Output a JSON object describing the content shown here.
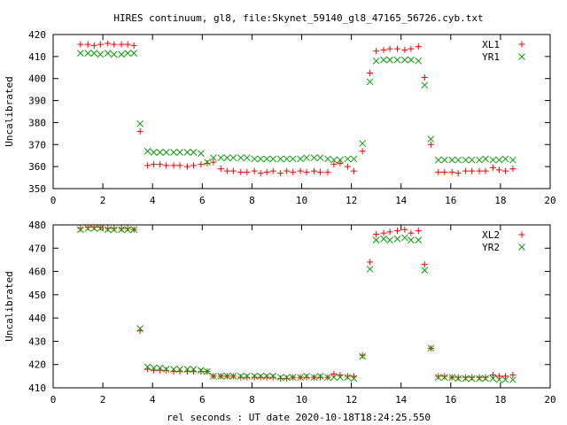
{
  "title": "HIRES continuum, gl8, file:Skynet_59140_gl8_47165_56726.cyb.txt",
  "xlabel": "rel seconds : UT date 2020-10-18T18:24:25.550",
  "colors": {
    "red": "#ff0000",
    "green": "#00a000",
    "black": "#000000"
  },
  "chart_data": [
    {
      "type": "scatter",
      "title": "HIRES continuum, gl8, file:Skynet_59140_gl8_47165_56726.cyb.txt",
      "xlabel": "",
      "ylabel": "Uncalibrated",
      "xlim": [
        0,
        20
      ],
      "ylim": [
        350,
        420
      ],
      "xticks": [
        "0",
        "2",
        "4",
        "6",
        "8",
        "10",
        "12",
        "14",
        "16",
        "18",
        "20"
      ],
      "yticks": [
        "350",
        "360",
        "370",
        "380",
        "390",
        "400",
        "410",
        "420"
      ],
      "legend_position": "top-right",
      "grid": false,
      "series": [
        {
          "name": "XL1",
          "marker": "plus",
          "color": "#ff0000",
          "x": [
            1.1,
            1.4,
            1.65,
            1.9,
            2.2,
            2.45,
            2.75,
            3.0,
            3.25,
            3.5,
            3.8,
            4.05,
            4.3,
            4.55,
            4.85,
            5.1,
            5.4,
            5.65,
            5.95,
            6.2,
            6.45,
            6.75,
            7.0,
            7.25,
            7.55,
            7.8,
            8.1,
            8.35,
            8.6,
            8.85,
            9.15,
            9.4,
            9.65,
            9.95,
            10.2,
            10.5,
            10.75,
            11.05,
            11.3,
            11.55,
            11.85,
            12.1,
            12.45,
            12.75,
            13.0,
            13.3,
            13.55,
            13.85,
            14.15,
            14.4,
            14.7,
            14.95,
            15.2,
            15.5,
            15.75,
            16.05,
            16.3,
            16.6,
            16.85,
            17.15,
            17.4,
            17.7,
            17.95,
            18.2,
            18.5
          ],
          "y": [
            415.5,
            415.5,
            415,
            415.5,
            416,
            415.5,
            415.5,
            415.5,
            415,
            376,
            360.5,
            361,
            361,
            360.5,
            360.5,
            360.5,
            360,
            360.5,
            361,
            361.5,
            362,
            359,
            358,
            358,
            357.5,
            357.5,
            358,
            357,
            357.5,
            358,
            357,
            358,
            357.5,
            358,
            357.5,
            358,
            357.5,
            357.5,
            361,
            361.5,
            360,
            358,
            367,
            402.5,
            412.5,
            413,
            413.5,
            413.5,
            413,
            413.5,
            414.5,
            400.5,
            370,
            357.5,
            357.5,
            357.5,
            357,
            358,
            358,
            358,
            358,
            359.5,
            358.5,
            358,
            359
          ]
        },
        {
          "name": "YR1",
          "marker": "cross",
          "color": "#00a000",
          "x": [
            1.1,
            1.4,
            1.65,
            1.9,
            2.2,
            2.45,
            2.75,
            3.0,
            3.25,
            3.5,
            3.8,
            4.05,
            4.3,
            4.55,
            4.85,
            5.1,
            5.4,
            5.65,
            5.95,
            6.2,
            6.45,
            6.75,
            7.0,
            7.25,
            7.55,
            7.8,
            8.1,
            8.35,
            8.6,
            8.85,
            9.15,
            9.4,
            9.65,
            9.95,
            10.2,
            10.5,
            10.75,
            11.05,
            11.3,
            11.55,
            11.85,
            12.1,
            12.45,
            12.75,
            13.0,
            13.3,
            13.55,
            13.85,
            14.15,
            14.4,
            14.7,
            14.95,
            15.2,
            15.5,
            15.75,
            16.05,
            16.3,
            16.6,
            16.85,
            17.15,
            17.4,
            17.7,
            17.95,
            18.2,
            18.5
          ],
          "y": [
            411.5,
            411.5,
            411.5,
            411,
            411.5,
            411,
            411,
            411.5,
            411.5,
            379.5,
            367,
            366.5,
            366.5,
            366.5,
            366.5,
            366.5,
            366.5,
            366.5,
            366,
            362,
            364,
            364,
            364,
            364,
            364,
            364,
            363.5,
            363.5,
            363.5,
            363.5,
            363.5,
            363.5,
            363.5,
            363.5,
            364,
            364,
            364,
            363.5,
            363,
            363,
            363.5,
            363.5,
            370.5,
            398.5,
            408,
            408.5,
            408.5,
            408.5,
            408.5,
            408.5,
            408,
            397,
            372.5,
            363,
            363,
            363,
            363,
            363,
            363,
            363,
            363.5,
            363,
            363,
            363.5,
            363
          ]
        }
      ]
    },
    {
      "type": "scatter",
      "title": "",
      "xlabel": "rel seconds : UT date 2020-10-18T18:24:25.550",
      "ylabel": "Uncalibrated",
      "xlim": [
        0,
        20
      ],
      "ylim": [
        410,
        480
      ],
      "xticks": [
        "0",
        "2",
        "4",
        "6",
        "8",
        "10",
        "12",
        "14",
        "16",
        "18",
        "20"
      ],
      "yticks": [
        "410",
        "420",
        "430",
        "440",
        "450",
        "460",
        "470",
        "480"
      ],
      "legend_position": "top-right",
      "grid": false,
      "series": [
        {
          "name": "XL2",
          "marker": "plus",
          "color": "#ff0000",
          "x": [
            1.1,
            1.4,
            1.65,
            1.9,
            2.2,
            2.45,
            2.75,
            3.0,
            3.25,
            3.5,
            3.8,
            4.05,
            4.3,
            4.55,
            4.85,
            5.1,
            5.4,
            5.65,
            5.95,
            6.2,
            6.45,
            6.75,
            7.0,
            7.25,
            7.55,
            7.8,
            8.1,
            8.35,
            8.6,
            8.85,
            9.15,
            9.4,
            9.65,
            9.95,
            10.2,
            10.5,
            10.75,
            11.05,
            11.3,
            11.55,
            11.85,
            12.1,
            12.45,
            12.75,
            13.0,
            13.3,
            13.55,
            13.85,
            14.15,
            14.4,
            14.7,
            14.95,
            15.2,
            15.5,
            15.75,
            16.05,
            16.3,
            16.6,
            16.85,
            17.15,
            17.4,
            17.7,
            17.95,
            18.2,
            18.5
          ],
          "y": [
            478.5,
            479,
            479,
            479,
            478.5,
            478.5,
            478.5,
            478.5,
            478,
            434.5,
            418,
            417.5,
            417.5,
            417.5,
            417,
            417,
            417,
            417,
            417,
            417,
            415,
            415,
            415,
            415,
            414.5,
            414.5,
            414.5,
            414.5,
            414.5,
            414.5,
            414,
            414,
            414.5,
            414.5,
            414.5,
            414.5,
            414.5,
            414.5,
            416,
            415.5,
            415,
            415,
            424,
            464,
            476,
            476.5,
            477,
            477.5,
            478,
            476.5,
            477.5,
            463,
            427,
            415,
            415,
            414.5,
            414.5,
            414.5,
            414.5,
            414.5,
            414.5,
            415.5,
            415,
            415,
            415.5
          ]
        },
        {
          "name": "YR2",
          "marker": "cross",
          "color": "#00a000",
          "x": [
            1.1,
            1.4,
            1.65,
            1.9,
            2.2,
            2.45,
            2.75,
            3.0,
            3.25,
            3.5,
            3.8,
            4.05,
            4.3,
            4.55,
            4.85,
            5.1,
            5.4,
            5.65,
            5.95,
            6.2,
            6.45,
            6.75,
            7.0,
            7.25,
            7.55,
            7.8,
            8.1,
            8.35,
            8.6,
            8.85,
            9.15,
            9.4,
            9.65,
            9.95,
            10.2,
            10.5,
            10.75,
            11.05,
            11.3,
            11.55,
            11.85,
            12.1,
            12.45,
            12.75,
            13.0,
            13.3,
            13.55,
            13.85,
            14.15,
            14.4,
            14.7,
            14.95,
            15.2,
            15.5,
            15.75,
            16.05,
            16.3,
            16.6,
            16.85,
            17.15,
            17.4,
            17.7,
            17.95,
            18.2,
            18.5
          ],
          "y": [
            478,
            478.5,
            478.5,
            478.5,
            478,
            478,
            478,
            478,
            478,
            435.5,
            419,
            418.5,
            418.5,
            418,
            418,
            418,
            418,
            418,
            417.5,
            417,
            415,
            415,
            415,
            415,
            415,
            415,
            415,
            415,
            415,
            415,
            414.5,
            414.5,
            414.5,
            414.5,
            415,
            414.5,
            415,
            414.5,
            414.5,
            414.5,
            414.5,
            414,
            423.5,
            461,
            473.5,
            474,
            473.5,
            474,
            474.5,
            473.5,
            473.5,
            460.5,
            427,
            414.5,
            414.5,
            414.5,
            414,
            414,
            414,
            414,
            414,
            414,
            413.5,
            413.5,
            413.5
          ]
        }
      ]
    }
  ]
}
